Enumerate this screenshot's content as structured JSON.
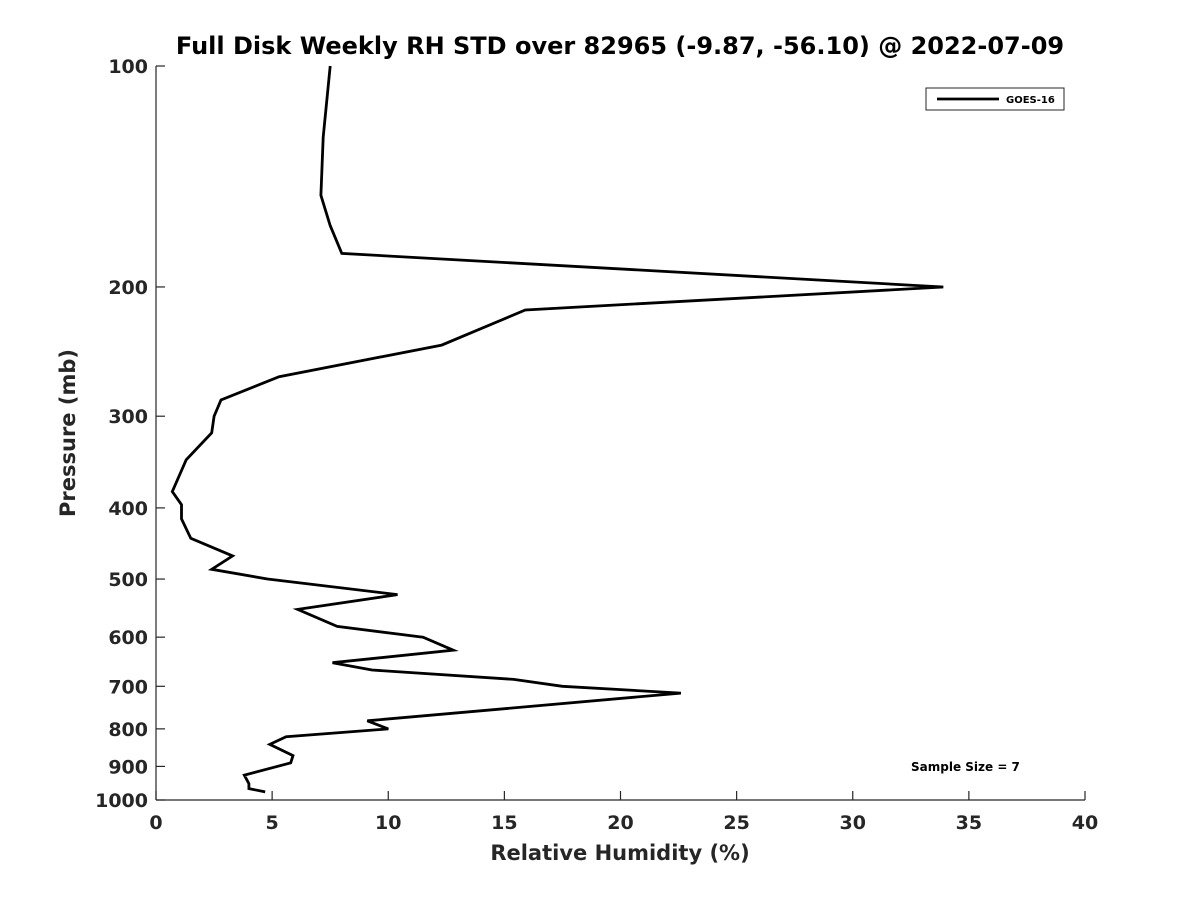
{
  "chart_data": {
    "type": "line",
    "title": "Full Disk Weekly RH STD over 82965 (-9.87, -56.10) @ 2022-07-09",
    "xlabel": "Relative Humidity (%)",
    "ylabel": "Pressure (mb)",
    "xlim": [
      0,
      40
    ],
    "ylim": [
      100,
      1000
    ],
    "y_scale": "log",
    "y_reversed": true,
    "x_ticks": [
      "0",
      "5",
      "10",
      "15",
      "20",
      "25",
      "30",
      "35",
      "40"
    ],
    "y_ticks": [
      "100",
      "200",
      "300",
      "400",
      "500",
      "600",
      "700",
      "800",
      "900",
      "1000"
    ],
    "grid": false,
    "legend_position": "top-right",
    "annotation": "Sample Size = 7",
    "series": [
      {
        "name": "GOES-16",
        "color": "#000000",
        "points": [
          {
            "x": 7.5,
            "y": 100
          },
          {
            "x": 7.2,
            "y": 125
          },
          {
            "x": 7.1,
            "y": 150
          },
          {
            "x": 7.5,
            "y": 165
          },
          {
            "x": 8.0,
            "y": 180
          },
          {
            "x": 33.9,
            "y": 200
          },
          {
            "x": 15.9,
            "y": 215
          },
          {
            "x": 12.3,
            "y": 240
          },
          {
            "x": 5.3,
            "y": 265
          },
          {
            "x": 2.8,
            "y": 285
          },
          {
            "x": 2.5,
            "y": 300
          },
          {
            "x": 2.4,
            "y": 316
          },
          {
            "x": 1.3,
            "y": 344
          },
          {
            "x": 0.7,
            "y": 380
          },
          {
            "x": 1.1,
            "y": 396
          },
          {
            "x": 1.1,
            "y": 414
          },
          {
            "x": 1.5,
            "y": 440
          },
          {
            "x": 3.3,
            "y": 465
          },
          {
            "x": 2.4,
            "y": 485
          },
          {
            "x": 4.8,
            "y": 500
          },
          {
            "x": 10.4,
            "y": 525
          },
          {
            "x": 6.1,
            "y": 550
          },
          {
            "x": 7.8,
            "y": 580
          },
          {
            "x": 11.5,
            "y": 600
          },
          {
            "x": 12.8,
            "y": 625
          },
          {
            "x": 7.6,
            "y": 650
          },
          {
            "x": 9.3,
            "y": 665
          },
          {
            "x": 15.4,
            "y": 685
          },
          {
            "x": 17.5,
            "y": 700
          },
          {
            "x": 22.6,
            "y": 715
          },
          {
            "x": 9.1,
            "y": 780
          },
          {
            "x": 10.0,
            "y": 800
          },
          {
            "x": 5.6,
            "y": 820
          },
          {
            "x": 4.9,
            "y": 840
          },
          {
            "x": 5.9,
            "y": 870
          },
          {
            "x": 5.8,
            "y": 890
          },
          {
            "x": 3.8,
            "y": 925
          },
          {
            "x": 4.0,
            "y": 950
          },
          {
            "x": 4.0,
            "y": 965
          },
          {
            "x": 4.7,
            "y": 975
          }
        ]
      }
    ]
  }
}
